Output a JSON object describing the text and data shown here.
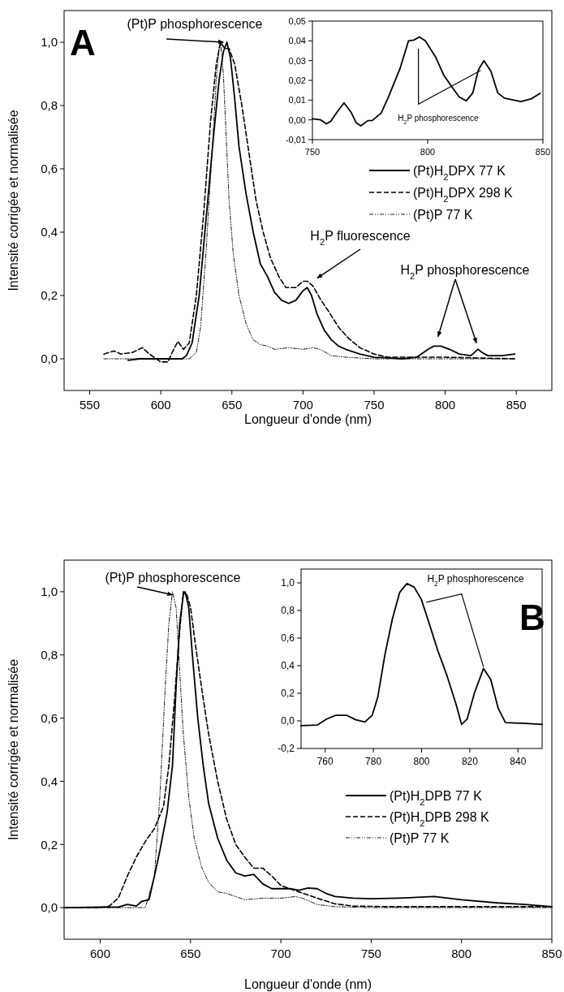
{
  "chart_data": [
    {
      "type": "line",
      "xlabel": "Longueur d'onde (nm)",
      "ylabel": "Intensité corrigée et normalisée",
      "xlim": [
        532,
        875
      ],
      "ylim": [
        -0.1,
        1.1
      ],
      "xticks": [
        550,
        600,
        650,
        700,
        750,
        800,
        850
      ],
      "yticks": [
        {
          "value": 0,
          "label": "0,0"
        },
        {
          "value": 0.2,
          "label": "0,2"
        },
        {
          "value": 0.4,
          "label": "0,4"
        },
        {
          "value": 0.6,
          "label": "0,6"
        },
        {
          "value": 0.8,
          "label": "0,8"
        },
        {
          "value": 1,
          "label": "1,0"
        }
      ],
      "legend": "right",
      "annotations": [
        "A",
        {
          "text": "(Pt)P phosphorescence",
          "x": 644,
          "y": 1.0
        },
        "H$_{2}$P fluorescence",
        "H$_{2}$P phosphorescence"
      ],
      "series": [
        {
          "name": "(Pt)H$_{2}$DPX 77 K",
          "color": "#000000",
          "line_style": "solid",
          "x": [
            577,
            585,
            600,
            615,
            618,
            622,
            627,
            632,
            637,
            641,
            644,
            646.5,
            649,
            652,
            655,
            660,
            665,
            670,
            675,
            680,
            685,
            690,
            695,
            700,
            703,
            706,
            710,
            715,
            720,
            725,
            730,
            740,
            750,
            760,
            770,
            780,
            788,
            792,
            797,
            803,
            810,
            818,
            823,
            826,
            830,
            840,
            849
          ],
          "values": [
            -0.005,
            0,
            0,
            0,
            0.01,
            0.05,
            0.2,
            0.45,
            0.7,
            0.88,
            0.97,
            1.0,
            0.95,
            0.82,
            0.67,
            0.52,
            0.4,
            0.3,
            0.26,
            0.21,
            0.185,
            0.175,
            0.185,
            0.215,
            0.225,
            0.2,
            0.14,
            0.09,
            0.06,
            0.04,
            0.03,
            0.015,
            0.005,
            0.003,
            0,
            0.005,
            0.03,
            0.04,
            0.04,
            0.03,
            0.015,
            0.01,
            0.03,
            0.02,
            0.01,
            0.01,
            0.015
          ]
        },
        {
          "name": "(Pt)H$_{2}$DPX 298 K",
          "color": "#000000",
          "line_style": "dashed",
          "x": [
            560,
            567,
            572,
            580,
            587,
            592,
            600,
            605,
            608,
            612,
            616,
            620,
            625,
            630,
            635,
            639,
            642,
            645,
            648,
            652,
            657,
            662,
            667,
            672,
            677,
            683,
            688,
            695,
            700,
            703,
            707,
            712,
            718,
            725,
            732,
            740,
            750,
            760,
            770,
            790,
            800,
            820,
            849
          ],
          "values": [
            0.015,
            0.025,
            0.015,
            0.02,
            0.035,
            0.015,
            -0.01,
            -0.01,
            0.02,
            0.055,
            0.03,
            0.05,
            0.2,
            0.45,
            0.75,
            0.93,
            1.0,
            0.98,
            0.98,
            0.93,
            0.8,
            0.65,
            0.5,
            0.4,
            0.32,
            0.26,
            0.225,
            0.225,
            0.245,
            0.245,
            0.23,
            0.19,
            0.15,
            0.1,
            0.065,
            0.035,
            0.015,
            0.005,
            0.005,
            0.005,
            0.005,
            0.003,
            0
          ]
        },
        {
          "name": "(Pt)P 77 K",
          "color": "#000000",
          "line_style": "dotted",
          "x": [
            560,
            600,
            620,
            625,
            628,
            632,
            636,
            639,
            641,
            642,
            644,
            646,
            648,
            651,
            655,
            660,
            665,
            670,
            675,
            680,
            690,
            700,
            707,
            712,
            720,
            730,
            750,
            800,
            849
          ],
          "values": [
            0,
            0,
            0,
            0.02,
            0.1,
            0.35,
            0.65,
            0.88,
            0.98,
            1.0,
            0.9,
            0.7,
            0.5,
            0.33,
            0.2,
            0.11,
            0.06,
            0.045,
            0.04,
            0.03,
            0.035,
            0.03,
            0.035,
            0.03,
            0.01,
            0.005,
            0,
            0,
            0
          ]
        }
      ]
    },
    {
      "type": "line",
      "xlim": [
        750,
        850
      ],
      "ylim": [
        -0.01,
        0.05
      ],
      "xticks": [
        750,
        800,
        850
      ],
      "yticks": [
        {
          "value": -0.01,
          "label": "-0,01"
        },
        {
          "value": 0,
          "label": "0,00"
        },
        {
          "value": 0.01,
          "label": "0,01"
        },
        {
          "value": 0.02,
          "label": "0,02"
        },
        {
          "value": 0.03,
          "label": "0,03"
        },
        {
          "value": 0.04,
          "label": "0,04"
        },
        {
          "value": 0.05,
          "label": "0,05"
        }
      ],
      "annotations": [
        "H$_{2}$P phosphorescence"
      ],
      "series": [
        {
          "color": "#000000",
          "line_style": "solid",
          "x": [
            750,
            753.6,
            756,
            758,
            760.7,
            763.7,
            766.7,
            769,
            771,
            774,
            776,
            779.8,
            783,
            788,
            791.7,
            794,
            796.4,
            799,
            803.6,
            807,
            810.7,
            813.7,
            816.7,
            819.6,
            822,
            824.4,
            827.4,
            830.4,
            833.3,
            840.5,
            845,
            848.8
          ],
          "values": [
            0.0005,
            0,
            -0.002,
            -0.0007,
            0.004,
            0.0086,
            0.004,
            -0.0015,
            -0.003,
            -0.0004,
            -0.0003,
            0.0034,
            0.0116,
            0.026,
            0.04,
            0.0404,
            0.042,
            0.04,
            0.0315,
            0.0226,
            0.0164,
            0.0116,
            0.0096,
            0.0137,
            0.0253,
            0.03,
            0.0247,
            0.0137,
            0.011,
            0.0093,
            0.0107,
            0.0134
          ]
        }
      ]
    },
    {
      "type": "line",
      "xlabel": "Longueur d'onde (nm)",
      "ylabel": "Intensité corrigée et normalisée",
      "xlim": [
        580,
        850
      ],
      "ylim": [
        -0.1,
        1.1
      ],
      "xticks": [
        600,
        650,
        700,
        750,
        800,
        850
      ],
      "yticks": [
        {
          "value": 0,
          "label": "0,0"
        },
        {
          "value": 0.2,
          "label": "0,2"
        },
        {
          "value": 0.4,
          "label": "0,4"
        },
        {
          "value": 0.6,
          "label": "0,6"
        },
        {
          "value": 0.8,
          "label": "0,8"
        },
        {
          "value": 1,
          "label": "1,0"
        }
      ],
      "legend": "right",
      "annotations": [
        {
          "text": "(Pt)P phosphorescence",
          "x": 640,
          "y": 0.99
        }
      ],
      "series": [
        {
          "name": "(Pt)H$_{2}$DPB 77 K",
          "color": "#000000",
          "line_style": "solid",
          "x": [
            580,
            600,
            610,
            615,
            620,
            623,
            627,
            630,
            633,
            637,
            640,
            642,
            644,
            646,
            647,
            649,
            651,
            654,
            657,
            660,
            665,
            670,
            675,
            680,
            685,
            690,
            695,
            700,
            705,
            710,
            715,
            720,
            725,
            730,
            740,
            750,
            765,
            785,
            800,
            820,
            835,
            850
          ],
          "values": [
            0,
            0.002,
            0.002,
            0.01,
            0.005,
            0.02,
            0.025,
            0.1,
            0.18,
            0.3,
            0.45,
            0.7,
            0.9,
            0.99,
            1.0,
            0.95,
            0.8,
            0.6,
            0.45,
            0.33,
            0.22,
            0.15,
            0.11,
            0.1,
            0.105,
            0.075,
            0.06,
            0.06,
            0.06,
            0.055,
            0.062,
            0.06,
            0.045,
            0.035,
            0.03,
            0.028,
            0.03,
            0.035,
            0.025,
            0.015,
            0.01,
            0.003
          ]
        },
        {
          "name": "(Pt)H$_{2}$DPB 298 K",
          "color": "#000000",
          "line_style": "dashed",
          "x": [
            580,
            600,
            605,
            610,
            615,
            620,
            625,
            630,
            635,
            638,
            641,
            644,
            646,
            648,
            650,
            653,
            656,
            660,
            665,
            670,
            675,
            680,
            685,
            690,
            695,
            700,
            710,
            720,
            730,
            740,
            760,
            800,
            850
          ],
          "values": [
            0,
            0,
            0.005,
            0.03,
            0.1,
            0.16,
            0.21,
            0.25,
            0.32,
            0.45,
            0.65,
            0.88,
            1.0,
            0.99,
            0.95,
            0.82,
            0.7,
            0.55,
            0.4,
            0.28,
            0.2,
            0.16,
            0.125,
            0.125,
            0.1,
            0.07,
            0.05,
            0.03,
            0.012,
            0.005,
            0.003,
            0.003,
            0.003
          ]
        },
        {
          "name": "(Pt)P 77 K",
          "color": "#000000",
          "line_style": "dotted",
          "x": [
            580,
            625,
            630,
            633,
            636,
            638,
            640,
            642,
            644,
            646,
            649,
            652,
            656,
            660,
            665,
            670,
            675,
            680,
            690,
            700,
            708,
            712,
            720,
            730,
            750,
            850
          ],
          "values": [
            0,
            0,
            0.1,
            0.35,
            0.7,
            0.9,
            1.0,
            0.95,
            0.75,
            0.55,
            0.35,
            0.22,
            0.13,
            0.08,
            0.05,
            0.045,
            0.035,
            0.025,
            0.03,
            0.03,
            0.035,
            0.03,
            0.01,
            0.003,
            0,
            0
          ]
        }
      ]
    },
    {
      "type": "line",
      "xlim": [
        750,
        850
      ],
      "ylim": [
        -0.2,
        1.1
      ],
      "xticks": [
        760,
        780,
        800,
        820,
        840
      ],
      "yticks": [
        {
          "value": -0.2,
          "label": "-0,2"
        },
        {
          "value": 0,
          "label": "0,0"
        },
        {
          "value": 0.2,
          "label": "0,2"
        },
        {
          "value": 0.4,
          "label": "0,4"
        },
        {
          "value": 0.6,
          "label": "0,6"
        },
        {
          "value": 0.8,
          "label": "0,8"
        },
        {
          "value": 1,
          "label": "1,0"
        }
      ],
      "annotations": [
        "B",
        {
          "text": "H$_{2}$P phosphorescence",
          "x": 802,
          "y": 0.86
        }
      ],
      "series": [
        {
          "color": "#000000",
          "line_style": "solid",
          "x": [
            750,
            756.8,
            760.6,
            764.4,
            769,
            772.7,
            776.5,
            779.5,
            781.8,
            784.8,
            787.9,
            790.9,
            793.9,
            796.9,
            799.9,
            802.9,
            806.7,
            810.5,
            814.3,
            816.6,
            818.9,
            821.9,
            825.7,
            828.7,
            831.8,
            834.8,
            838.6,
            843.1,
            850
          ],
          "values": [
            -0.034,
            -0.03,
            0.013,
            0.04,
            0.04,
            0.008,
            -0.008,
            0.04,
            0.17,
            0.48,
            0.74,
            0.93,
            0.995,
            0.97,
            0.88,
            0.72,
            0.51,
            0.33,
            0.12,
            -0.026,
            0.013,
            0.2,
            0.38,
            0.3,
            0.09,
            -0.013,
            -0.016,
            -0.018,
            -0.026
          ]
        }
      ]
    }
  ]
}
